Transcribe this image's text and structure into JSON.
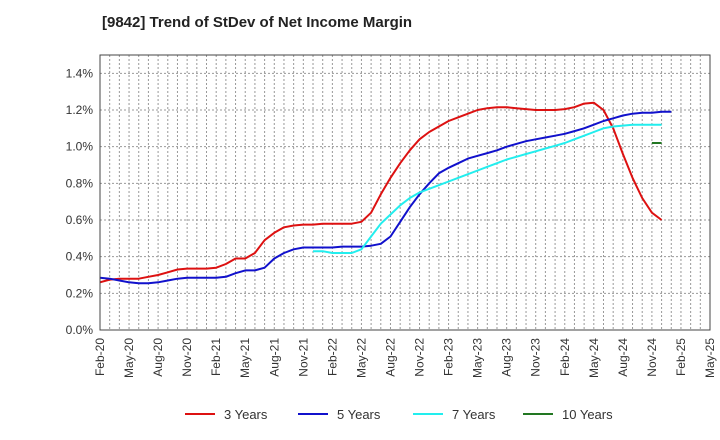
{
  "chart_data": {
    "type": "line",
    "title": "[9842]  Trend of StDev of Net Income Margin",
    "xlabel": "",
    "ylabel": "",
    "ylim": [
      0,
      1.5
    ],
    "y_ticks": [
      "0.0%",
      "0.2%",
      "0.4%",
      "0.6%",
      "0.8%",
      "1.0%",
      "1.2%",
      "1.4%"
    ],
    "y_tick_values": [
      0,
      0.2,
      0.4,
      0.6,
      0.8,
      1.0,
      1.2,
      1.4
    ],
    "x_ticks": [
      "Feb-20",
      "May-20",
      "Aug-20",
      "Nov-20",
      "Feb-21",
      "May-21",
      "Aug-21",
      "Nov-21",
      "Feb-22",
      "May-22",
      "Aug-22",
      "Nov-22",
      "Feb-23",
      "May-23",
      "Aug-23",
      "Nov-23",
      "Feb-24",
      "May-24",
      "Aug-24",
      "Nov-24",
      "Feb-25",
      "May-25"
    ],
    "x_start": "Feb-20",
    "grid": true,
    "legend_position": "bottom",
    "series": [
      {
        "name": "3 Years",
        "color": "#dd1111",
        "start_index": 0,
        "values": [
          0.26,
          0.275,
          0.28,
          0.28,
          0.28,
          0.29,
          0.3,
          0.315,
          0.33,
          0.335,
          0.335,
          0.335,
          0.34,
          0.36,
          0.39,
          0.39,
          0.42,
          0.49,
          0.53,
          0.56,
          0.57,
          0.575,
          0.575,
          0.58,
          0.58,
          0.58,
          0.58,
          0.59,
          0.64,
          0.74,
          0.83,
          0.91,
          0.98,
          1.04,
          1.08,
          1.11,
          1.14,
          1.16,
          1.18,
          1.2,
          1.21,
          1.215,
          1.215,
          1.21,
          1.205,
          1.2,
          1.2,
          1.2,
          1.205,
          1.215,
          1.235,
          1.24,
          1.2,
          1.1,
          0.96,
          0.83,
          0.72,
          0.64,
          0.6
        ]
      },
      {
        "name": "5 Years",
        "color": "#1111cc",
        "start_index": 0,
        "values": [
          0.285,
          0.28,
          0.27,
          0.26,
          0.255,
          0.255,
          0.26,
          0.27,
          0.28,
          0.285,
          0.285,
          0.285,
          0.285,
          0.29,
          0.31,
          0.325,
          0.325,
          0.34,
          0.39,
          0.42,
          0.44,
          0.45,
          0.45,
          0.45,
          0.45,
          0.455,
          0.455,
          0.455,
          0.46,
          0.47,
          0.51,
          0.59,
          0.67,
          0.74,
          0.8,
          0.855,
          0.885,
          0.91,
          0.935,
          0.95,
          0.965,
          0.98,
          1.0,
          1.015,
          1.03,
          1.04,
          1.05,
          1.06,
          1.07,
          1.085,
          1.1,
          1.12,
          1.14,
          1.155,
          1.17,
          1.18,
          1.185,
          1.185,
          1.19,
          1.19
        ]
      },
      {
        "name": "7 Years",
        "color": "#22eeee",
        "start_index": 22,
        "values": [
          0.43,
          0.43,
          0.42,
          0.42,
          0.42,
          0.44,
          0.51,
          0.58,
          0.63,
          0.68,
          0.72,
          0.75,
          0.77,
          0.79,
          0.81,
          0.83,
          0.85,
          0.87,
          0.89,
          0.91,
          0.93,
          0.945,
          0.96,
          0.975,
          0.99,
          1.005,
          1.02,
          1.04,
          1.06,
          1.08,
          1.1,
          1.11,
          1.115,
          1.12,
          1.12,
          1.12,
          1.12
        ]
      },
      {
        "name": "10 Years",
        "color": "#227722",
        "start_index": 57,
        "values": [
          1.02,
          1.02
        ]
      }
    ]
  }
}
